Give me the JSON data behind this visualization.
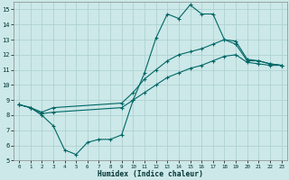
{
  "xlabel": "Humidex (Indice chaleur)",
  "ylabel": "",
  "xlim": [
    -0.5,
    23.5
  ],
  "ylim": [
    5,
    15.5
  ],
  "yticks": [
    5,
    6,
    7,
    8,
    9,
    10,
    11,
    12,
    13,
    14,
    15
  ],
  "xticks": [
    0,
    1,
    2,
    3,
    4,
    5,
    6,
    7,
    8,
    9,
    10,
    11,
    12,
    13,
    14,
    15,
    16,
    17,
    18,
    19,
    20,
    21,
    22,
    23
  ],
  "bg_color": "#cce8e8",
  "line_color": "#006666",
  "grid_color": "#aacece",
  "line1_x": [
    0,
    1,
    2,
    3,
    4,
    5,
    6,
    7,
    8,
    9,
    10,
    11,
    12,
    13,
    14,
    15,
    16,
    17,
    18,
    19,
    20,
    21,
    22,
    23
  ],
  "line1_y": [
    8.7,
    8.5,
    8.0,
    7.3,
    5.7,
    5.4,
    6.2,
    6.4,
    6.4,
    6.7,
    9.0,
    10.8,
    13.1,
    14.7,
    14.4,
    15.3,
    14.7,
    14.7,
    13.0,
    12.7,
    11.6,
    11.6,
    11.4,
    11.3
  ],
  "line2_x": [
    0,
    1,
    2,
    3,
    9,
    10,
    11,
    12,
    13,
    14,
    15,
    16,
    17,
    18,
    19,
    20,
    21,
    22,
    23
  ],
  "line2_y": [
    8.7,
    8.5,
    8.2,
    8.5,
    8.8,
    9.5,
    10.4,
    11.0,
    11.6,
    12.0,
    12.2,
    12.4,
    12.7,
    13.0,
    12.9,
    11.7,
    11.6,
    11.4,
    11.3
  ],
  "line3_x": [
    0,
    1,
    2,
    3,
    9,
    10,
    11,
    12,
    13,
    14,
    15,
    16,
    17,
    18,
    19,
    20,
    21,
    22,
    23
  ],
  "line3_y": [
    8.7,
    8.5,
    8.1,
    8.2,
    8.5,
    9.0,
    9.5,
    10.0,
    10.5,
    10.8,
    11.1,
    11.3,
    11.6,
    11.9,
    12.0,
    11.5,
    11.4,
    11.3,
    11.3
  ]
}
